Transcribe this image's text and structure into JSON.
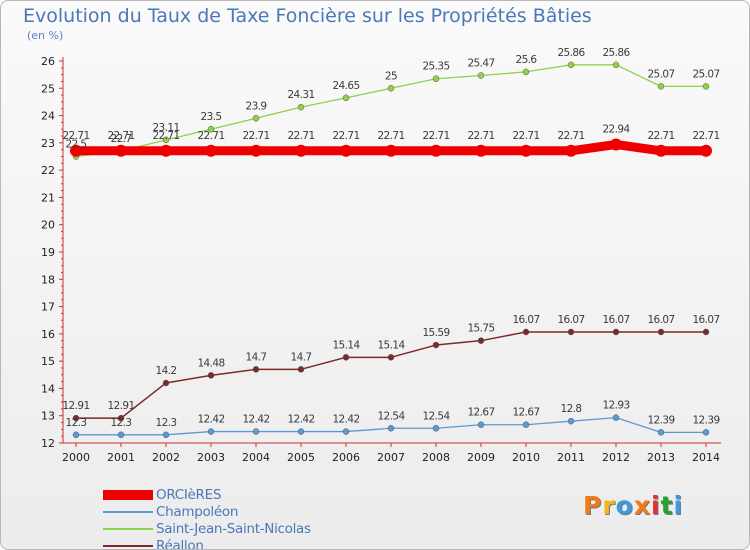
{
  "header": {
    "title": "Evolution du Taux de Taxe Foncière sur les Propriétés Bâties",
    "subtitle": "(en %)"
  },
  "brand": {
    "text": "Proxiti",
    "colors": [
      "#f07a1a",
      "#f0b81a",
      "#3b9ae0",
      "#f07a1a",
      "#e03030",
      "#2aa02a",
      "#3b9ae0"
    ]
  },
  "chart_data": {
    "type": "line",
    "title": "Evolution du Taux de Taxe Foncière sur les Propriétés Bâties",
    "ylabel": "(en %)",
    "xlabel": "",
    "ylim": [
      12,
      26
    ],
    "yticks": [
      12,
      13,
      14,
      15,
      16,
      17,
      18,
      19,
      20,
      21,
      22,
      23,
      24,
      25,
      26
    ],
    "grid": false,
    "legend_position": "bottom-left",
    "x": [
      "2000",
      "2001",
      "2002",
      "2003",
      "2004",
      "2005",
      "2006",
      "2007",
      "2008",
      "2009",
      "2010",
      "2011",
      "2012",
      "2013",
      "2014"
    ],
    "series": [
      {
        "name": "ORCIèRES",
        "color": "#ee0000",
        "values": [
          22.71,
          22.71,
          22.71,
          22.71,
          22.71,
          22.71,
          22.71,
          22.71,
          22.71,
          22.71,
          22.71,
          22.71,
          22.94,
          22.71,
          22.71
        ],
        "labels": [
          "22.71",
          "22.71",
          "22.71",
          "22.71",
          "22.71",
          "22.71",
          "22.71",
          "22.71",
          "22.71",
          "22.71",
          "22.71",
          "22.71",
          "22.94",
          "22.71",
          "22.71"
        ]
      },
      {
        "name": "Champoléon",
        "color": "#5a9ad4",
        "values": [
          12.3,
          12.3,
          12.3,
          12.42,
          12.42,
          12.42,
          12.42,
          12.54,
          12.54,
          12.67,
          12.67,
          12.8,
          12.93,
          12.39,
          12.39
        ],
        "labels": [
          "12.3",
          "12.3",
          "12.3",
          "12.42",
          "12.42",
          "12.42",
          "12.42",
          "12.54",
          "12.54",
          "12.67",
          "12.67",
          "12.8",
          "12.93",
          "12.39",
          "12.39"
        ]
      },
      {
        "name": "Saint-Jean-Saint-Nicolas",
        "color": "#8ed24a",
        "values": [
          22.5,
          22.7,
          23.11,
          23.5,
          23.9,
          24.31,
          24.65,
          25.0,
          25.35,
          25.47,
          25.6,
          25.86,
          25.86,
          25.07,
          25.07
        ],
        "labels": [
          "22.5",
          "22.7",
          "23.11",
          "23.5",
          "23.9",
          "24.31",
          "24.65",
          "25",
          "25.35",
          "25.47",
          "25.6",
          "25.86",
          "25.86",
          "25.07",
          "25.07"
        ]
      },
      {
        "name": "Réallon",
        "color": "#7a2a2a",
        "values": [
          12.91,
          12.91,
          14.2,
          14.48,
          14.7,
          14.7,
          15.14,
          15.14,
          15.59,
          15.75,
          16.07,
          16.07,
          16.07,
          16.07,
          16.07
        ],
        "labels": [
          "12.91",
          "12.91",
          "14.2",
          "14.48",
          "14.7",
          "14.7",
          "15.14",
          "15.14",
          "15.59",
          "15.75",
          "16.07",
          "16.07",
          "16.07",
          "16.07",
          "16.07"
        ]
      }
    ]
  }
}
